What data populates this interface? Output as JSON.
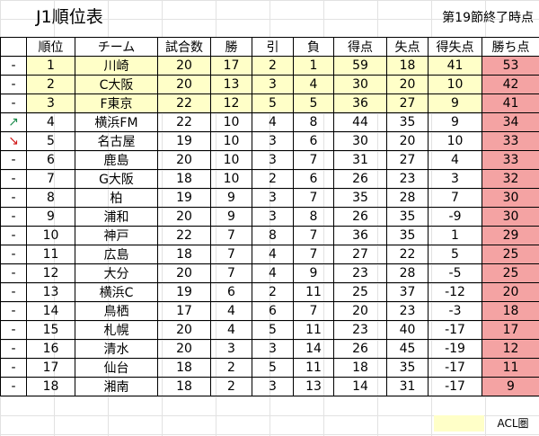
{
  "title": "J1順位表",
  "note": "第19節終了時点",
  "headers": [
    "",
    "順位",
    "チーム",
    "試合数",
    "勝",
    "引",
    "負",
    "得点",
    "失点",
    "得失点",
    "勝ち点"
  ],
  "rows": [
    {
      "trend": "-",
      "rank": "1",
      "team": "川崎",
      "played": "20",
      "win": "17",
      "draw": "2",
      "loss": "1",
      "gf": "59",
      "ga": "18",
      "gd": "41",
      "pts": "53",
      "acl": true
    },
    {
      "trend": "-",
      "rank": "2",
      "team": "C大阪",
      "played": "20",
      "win": "13",
      "draw": "3",
      "loss": "4",
      "gf": "30",
      "ga": "20",
      "gd": "10",
      "pts": "42",
      "acl": true
    },
    {
      "trend": "-",
      "rank": "3",
      "team": "F東京",
      "played": "22",
      "win": "12",
      "draw": "5",
      "loss": "5",
      "gf": "36",
      "ga": "27",
      "gd": "9",
      "pts": "41",
      "acl": true
    },
    {
      "trend": "↗",
      "rank": "4",
      "team": "横浜FM",
      "played": "22",
      "win": "10",
      "draw": "4",
      "loss": "8",
      "gf": "44",
      "ga": "35",
      "gd": "9",
      "pts": "34",
      "dir": "up"
    },
    {
      "trend": "↘",
      "rank": "5",
      "team": "名古屋",
      "played": "19",
      "win": "10",
      "draw": "3",
      "loss": "6",
      "gf": "30",
      "ga": "20",
      "gd": "10",
      "pts": "33",
      "dir": "down"
    },
    {
      "trend": "-",
      "rank": "6",
      "team": "鹿島",
      "played": "20",
      "win": "10",
      "draw": "3",
      "loss": "7",
      "gf": "31",
      "ga": "27",
      "gd": "4",
      "pts": "33"
    },
    {
      "trend": "-",
      "rank": "7",
      "team": "G大阪",
      "played": "18",
      "win": "10",
      "draw": "2",
      "loss": "6",
      "gf": "26",
      "ga": "23",
      "gd": "3",
      "pts": "32"
    },
    {
      "trend": "-",
      "rank": "8",
      "team": "柏",
      "played": "19",
      "win": "9",
      "draw": "3",
      "loss": "7",
      "gf": "35",
      "ga": "28",
      "gd": "7",
      "pts": "30"
    },
    {
      "trend": "-",
      "rank": "9",
      "team": "浦和",
      "played": "20",
      "win": "9",
      "draw": "3",
      "loss": "8",
      "gf": "26",
      "ga": "35",
      "gd": "-9",
      "pts": "30"
    },
    {
      "trend": "-",
      "rank": "10",
      "team": "神戸",
      "played": "22",
      "win": "7",
      "draw": "8",
      "loss": "7",
      "gf": "36",
      "ga": "35",
      "gd": "1",
      "pts": "29"
    },
    {
      "trend": "-",
      "rank": "11",
      "team": "広島",
      "played": "18",
      "win": "7",
      "draw": "4",
      "loss": "7",
      "gf": "27",
      "ga": "22",
      "gd": "5",
      "pts": "25"
    },
    {
      "trend": "-",
      "rank": "12",
      "team": "大分",
      "played": "20",
      "win": "7",
      "draw": "4",
      "loss": "9",
      "gf": "23",
      "ga": "28",
      "gd": "-5",
      "pts": "25"
    },
    {
      "trend": "-",
      "rank": "13",
      "team": "横浜C",
      "played": "19",
      "win": "6",
      "draw": "2",
      "loss": "11",
      "gf": "25",
      "ga": "37",
      "gd": "-12",
      "pts": "20"
    },
    {
      "trend": "-",
      "rank": "14",
      "team": "鳥栖",
      "played": "17",
      "win": "4",
      "draw": "6",
      "loss": "7",
      "gf": "20",
      "ga": "23",
      "gd": "-3",
      "pts": "18"
    },
    {
      "trend": "-",
      "rank": "15",
      "team": "札幌",
      "played": "20",
      "win": "4",
      "draw": "5",
      "loss": "11",
      "gf": "23",
      "ga": "40",
      "gd": "-17",
      "pts": "17"
    },
    {
      "trend": "-",
      "rank": "16",
      "team": "清水",
      "played": "20",
      "win": "3",
      "draw": "3",
      "loss": "14",
      "gf": "26",
      "ga": "45",
      "gd": "-19",
      "pts": "12"
    },
    {
      "trend": "-",
      "rank": "17",
      "team": "仙台",
      "played": "18",
      "win": "2",
      "draw": "5",
      "loss": "11",
      "gf": "18",
      "ga": "35",
      "gd": "-17",
      "pts": "11"
    },
    {
      "trend": "-",
      "rank": "18",
      "team": "湘南",
      "played": "18",
      "win": "2",
      "draw": "3",
      "loss": "13",
      "gf": "14",
      "ga": "31",
      "gd": "-17",
      "pts": "9"
    }
  ],
  "legend": {
    "label": "ACL圏",
    "color": "#ffffc8"
  },
  "colors": {
    "acl": "#ffffc8",
    "points": "#f4a3a3",
    "up": "#1a8a4a",
    "down": "#d01818"
  }
}
